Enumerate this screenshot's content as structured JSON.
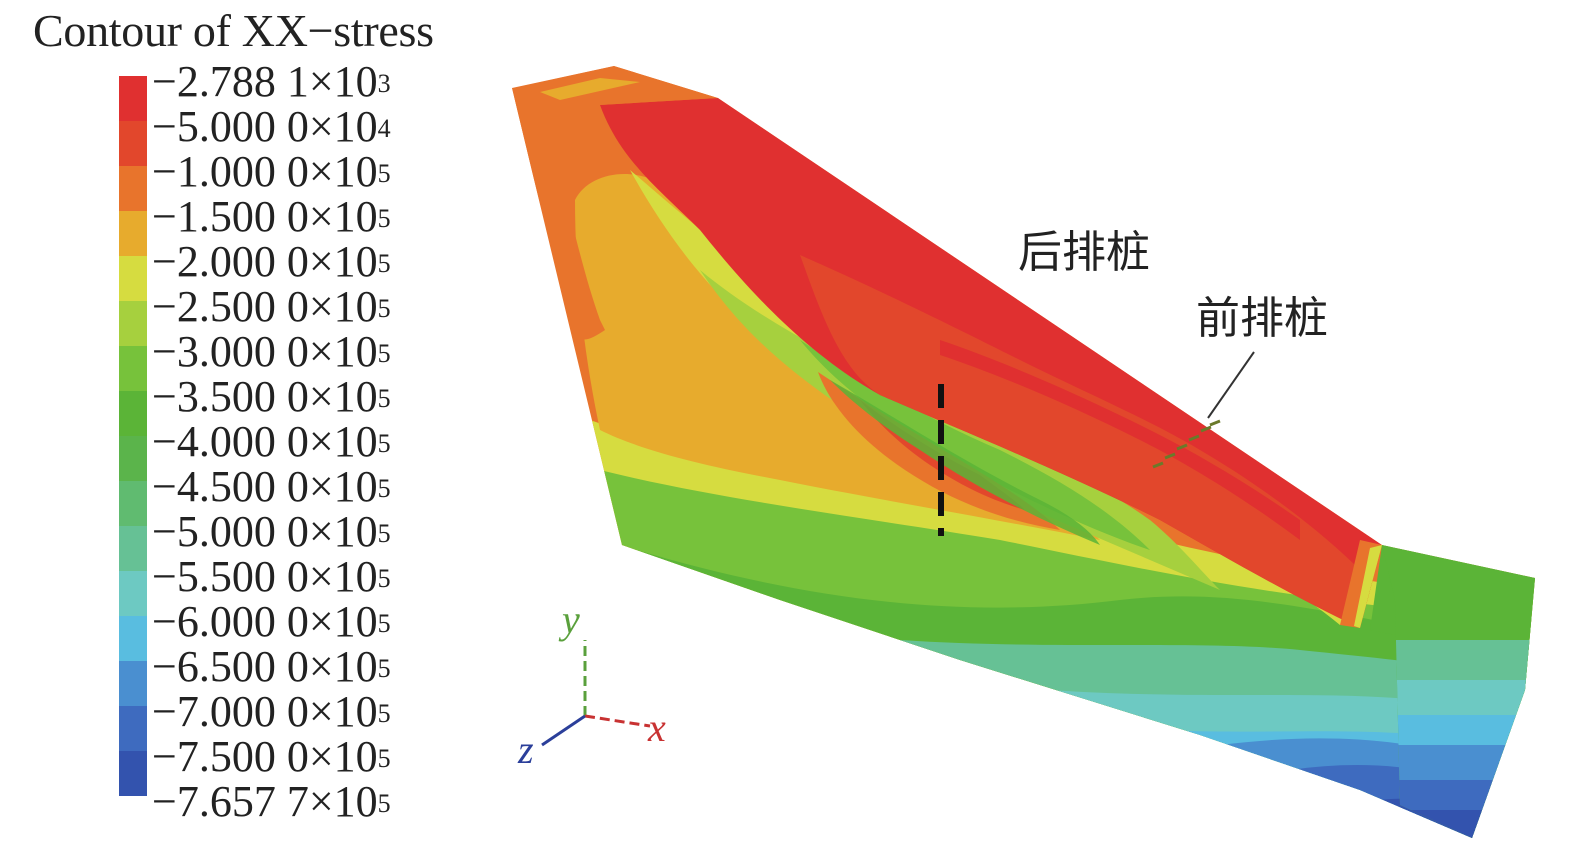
{
  "title": "Contour of XX−stress",
  "legend": {
    "labels": [
      {
        "mantissa": "−2.788 1×10",
        "exp": "3"
      },
      {
        "mantissa": "−5.000 0×10",
        "exp": "4"
      },
      {
        "mantissa": "−1.000 0×10",
        "exp": "5"
      },
      {
        "mantissa": "−1.500 0×10",
        "exp": "5"
      },
      {
        "mantissa": "−2.000 0×10",
        "exp": "5"
      },
      {
        "mantissa": "−2.500 0×10",
        "exp": "5"
      },
      {
        "mantissa": "−3.000 0×10",
        "exp": "5"
      },
      {
        "mantissa": "−3.500 0×10",
        "exp": "5"
      },
      {
        "mantissa": "−4.000 0×10",
        "exp": "5"
      },
      {
        "mantissa": "−4.500 0×10",
        "exp": "5"
      },
      {
        "mantissa": "−5.000 0×10",
        "exp": "5"
      },
      {
        "mantissa": "−5.500 0×10",
        "exp": "5"
      },
      {
        "mantissa": "−6.000 0×10",
        "exp": "5"
      },
      {
        "mantissa": "−6.500 0×10",
        "exp": "5"
      },
      {
        "mantissa": "−7.000 0×10",
        "exp": "5"
      },
      {
        "mantissa": "−7.500 0×10",
        "exp": "5"
      },
      {
        "mantissa": "−7.657 7×10",
        "exp": "5"
      }
    ],
    "colors": [
      "#e03030",
      "#e2472c",
      "#e8742c",
      "#e7ab2d",
      "#d6dc40",
      "#a6d03e",
      "#77c23b",
      "#5bb437",
      "#5bb44b",
      "#60bb70",
      "#66c195",
      "#6dc9c2",
      "#59bde0",
      "#4a8fd0",
      "#3e6bbf",
      "#3353ae"
    ]
  },
  "annotations": {
    "rear_piles": "后排桩",
    "front_piles": "前排桩"
  },
  "axes": {
    "x": "x",
    "y": "y",
    "z": "z",
    "x_color": "#c83232",
    "y_color": "#5aa03c",
    "z_color": "#2b3f9a"
  }
}
